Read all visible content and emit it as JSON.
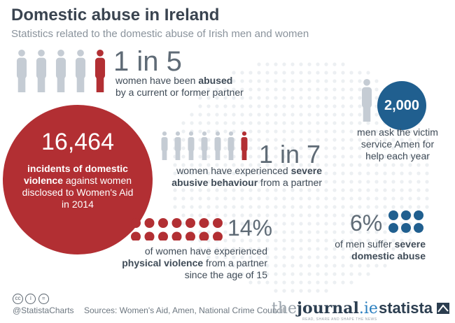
{
  "title": "Domestic abuse in Ireland",
  "subtitle": "Statistics related to the domestic abuse of Irish men and women",
  "colors": {
    "red": "#b22f33",
    "blue": "#205f8f",
    "grey_figure": "#c5ccd4",
    "map_dots": "#eceff2"
  },
  "chart_data": {
    "type": "infographic",
    "title": "Domestic abuse in Ireland",
    "subtitle": "Statistics related to the domestic abuse of Irish men and women",
    "stats": [
      {
        "key": "women_abused",
        "value": "1 in 5",
        "ratio": [
          1,
          5
        ],
        "pre": "women have been ",
        "bold": "abused",
        "post": "by a current or former partner"
      },
      {
        "key": "incidents",
        "value": "16,464",
        "bold": "incidents of domestic violence",
        "post": " against women disclosed to Women's Aid in 2014"
      },
      {
        "key": "severe_behaviour",
        "value": "1 in 7",
        "ratio": [
          1,
          7
        ],
        "pre": "women have experienced ",
        "bold": "severe abusive behaviour",
        "post": " from a partner"
      },
      {
        "key": "men_amen",
        "value": "2,000",
        "text": "men ask the victim service Amen for help each year"
      },
      {
        "key": "physical",
        "value": "14%",
        "percent": 14,
        "pre": "of women have experienced ",
        "bold": "physical violence",
        "post": " from a partner since the age of 15"
      },
      {
        "key": "men_severe",
        "value": "6%",
        "percent": 6,
        "pre": "of men suffer ",
        "bold": "severe domestic abuse"
      }
    ]
  },
  "footer": {
    "handle": "@StatistaCharts",
    "sources": "Sources: Women's Aid, Amen, National Crime Council",
    "journal_the": "the",
    "journal_name": "journal",
    "journal_ie": ".ie",
    "journal_tagline": "READ, SHARE AND SHAPE THE NEWS",
    "brand": "statista"
  }
}
